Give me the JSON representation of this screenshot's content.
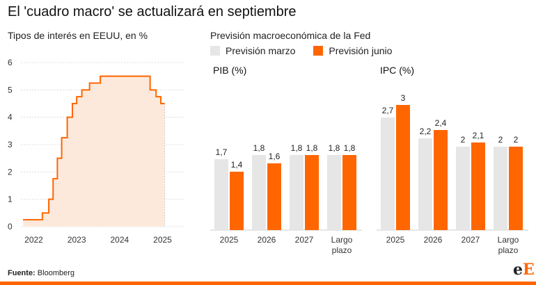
{
  "title": "El 'cuadro macro' se actualizará en septiembre",
  "rates_panel": {
    "subtitle": "Tipos de interés en EEUU, en %"
  },
  "fed_panel": {
    "subtitle": "Previsión macroeconómica de la Fed",
    "legend": [
      {
        "label": "Previsión marzo",
        "color": "#e6e6e6"
      },
      {
        "label": "Previsión junio",
        "color": "#ff6600"
      }
    ]
  },
  "colors": {
    "accent": "#ff6600",
    "accent_fill": "#fde9dc",
    "march": "#e6e6e6",
    "grid": "#dddddd"
  },
  "chart_data": [
    {
      "type": "line",
      "title": "Tipos de interés en EEUU, en %",
      "ylim": [
        0,
        6
      ],
      "yticks": [
        0,
        1,
        2,
        3,
        4,
        5,
        6
      ],
      "xticks": [
        2022,
        2023,
        2024,
        2025
      ],
      "xlim": [
        2021.7,
        2025.3
      ],
      "step": true,
      "filled": true,
      "series": [
        {
          "x": [
            2021.75,
            2022.2,
            2022.35,
            2022.45,
            2022.55,
            2022.65,
            2022.78,
            2022.9,
            2023.0,
            2023.12,
            2023.3,
            2023.55,
            2024.2,
            2024.71,
            2024.85,
            2024.96,
            2025.05
          ],
          "y": [
            0.25,
            0.5,
            1.0,
            1.75,
            2.5,
            3.25,
            4.0,
            4.5,
            4.75,
            5.0,
            5.25,
            5.5,
            5.5,
            5.0,
            4.75,
            4.5,
            4.5
          ]
        }
      ]
    },
    {
      "type": "bar",
      "title": "PIB (%)",
      "categories": [
        "2025",
        "2026",
        "2027",
        "Largo plazo"
      ],
      "ylim": [
        0,
        3.4
      ],
      "series": [
        {
          "name": "Previsión marzo",
          "values": [
            1.7,
            1.8,
            1.8,
            1.8
          ],
          "labels": [
            "1,7",
            "1,8",
            "1,8",
            "1,8"
          ]
        },
        {
          "name": "Previsión junio",
          "values": [
            1.4,
            1.6,
            1.8,
            1.8
          ],
          "labels": [
            "1,4",
            "1,6",
            "1,8",
            "1,8"
          ]
        }
      ]
    },
    {
      "type": "bar",
      "title": "IPC (%)",
      "categories": [
        "2025",
        "2026",
        "2027",
        "Largo plazo"
      ],
      "ylim": [
        0,
        3.4
      ],
      "series": [
        {
          "name": "Previsión marzo",
          "values": [
            2.7,
            2.2,
            2.0,
            2.0
          ],
          "labels": [
            "2,7",
            "2,2",
            "2",
            "2"
          ]
        },
        {
          "name": "Previsión junio",
          "values": [
            3.0,
            2.4,
            2.1,
            2.0
          ],
          "labels": [
            "3",
            "2,4",
            "2,1",
            "2"
          ]
        }
      ]
    }
  ],
  "footer": {
    "label": "Fuente:",
    "source": "Bloomberg"
  },
  "logo": {
    "text": "eE"
  }
}
